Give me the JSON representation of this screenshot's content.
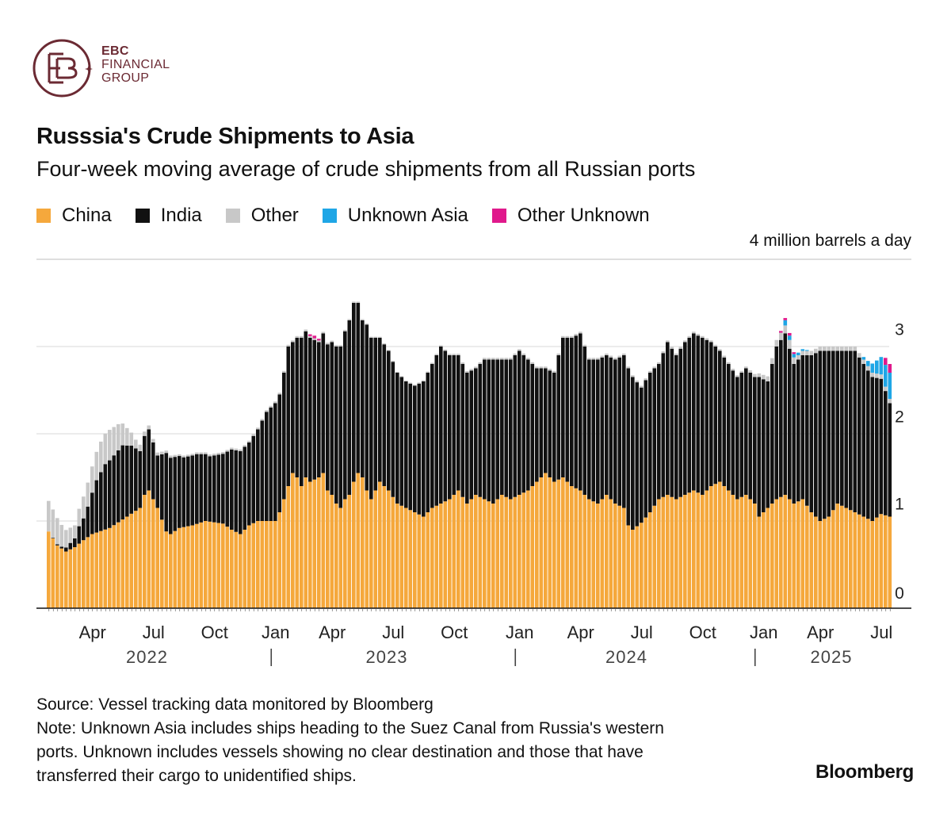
{
  "logo": {
    "line1": "EBC",
    "line2": "FINANCIAL",
    "line3": "GROUP"
  },
  "title": "Russsia's Crude Shipments to Asia",
  "subtitle": "Four-week moving average of crude shipments from all Russian ports",
  "legend": [
    {
      "label": "China",
      "color": "#f5a83c"
    },
    {
      "label": "India",
      "color": "#111111"
    },
    {
      "label": "Other",
      "color": "#c8c8c8"
    },
    {
      "label": "Unknown Asia",
      "color": "#1fa6e6"
    },
    {
      "label": "Other Unknown",
      "color": "#e0198c"
    }
  ],
  "unit_label": "4 million barrels a day",
  "footer": {
    "source": "Source: Vessel tracking data monitored by Bloomberg",
    "note_line1": "Note: Unknown Asia includes ships heading to the Suez Canal from Russia's western",
    "note_line2": "ports. Unknown includes vessels showing no clear destination and those that have",
    "note_line3": "transferred their cargo to unidentified ships."
  },
  "brand": "Bloomberg",
  "chart_data": {
    "type": "bar",
    "stacked": true,
    "ylabel": "4 million barrels a day",
    "ylim": [
      0,
      4
    ],
    "y_ticks": [
      0,
      1,
      2,
      3
    ],
    "grid": true,
    "month_ticks": [
      {
        "label": "Apr",
        "week": 10
      },
      {
        "label": "Jul",
        "week": 24
      },
      {
        "label": "Oct",
        "week": 38
      },
      {
        "label": "Jan",
        "week": 52
      },
      {
        "label": "Apr",
        "week": 65
      },
      {
        "label": "Jul",
        "week": 79
      },
      {
        "label": "Oct",
        "week": 93
      },
      {
        "label": "Jan",
        "week": 108
      },
      {
        "label": "Apr",
        "week": 122
      },
      {
        "label": "Jul",
        "week": 136
      },
      {
        "label": "Oct",
        "week": 150
      },
      {
        "label": "Jan",
        "week": 164
      },
      {
        "label": "Apr",
        "week": 177
      },
      {
        "label": "Jul",
        "week": 191
      }
    ],
    "years": [
      {
        "label": "2022",
        "week": 23
      },
      {
        "label": "2023",
        "week": 78
      },
      {
        "label": "2024",
        "week": 133
      },
      {
        "label": "2025",
        "week": 180
      }
    ],
    "year_separators": [
      51.5,
      107.5,
      162.5
    ],
    "series": [
      {
        "name": "China",
        "color": "#f5a83c",
        "key": [
          [
            0,
            0.88
          ],
          [
            2,
            0.72
          ],
          [
            4,
            0.65
          ],
          [
            6,
            0.7
          ],
          [
            8,
            0.78
          ],
          [
            10,
            0.85
          ],
          [
            14,
            0.92
          ],
          [
            18,
            1.05
          ],
          [
            21,
            1.15
          ],
          [
            22,
            1.3
          ],
          [
            23,
            1.35
          ],
          [
            25,
            1.15
          ],
          [
            27,
            0.88
          ],
          [
            28,
            0.85
          ],
          [
            30,
            0.92
          ],
          [
            33,
            0.95
          ],
          [
            36,
            1.0
          ],
          [
            40,
            0.97
          ],
          [
            42,
            0.9
          ],
          [
            44,
            0.85
          ],
          [
            46,
            0.95
          ],
          [
            48,
            1.0
          ],
          [
            52,
            1.0
          ],
          [
            53,
            1.1
          ],
          [
            54,
            1.25
          ],
          [
            55,
            1.4
          ],
          [
            56,
            1.55
          ],
          [
            57,
            1.5
          ],
          [
            58,
            1.4
          ],
          [
            59,
            1.5
          ],
          [
            60,
            1.45
          ],
          [
            62,
            1.5
          ],
          [
            63,
            1.55
          ],
          [
            64,
            1.35
          ],
          [
            65,
            1.3
          ],
          [
            66,
            1.2
          ],
          [
            67,
            1.15
          ],
          [
            68,
            1.25
          ],
          [
            69,
            1.3
          ],
          [
            70,
            1.45
          ],
          [
            71,
            1.55
          ],
          [
            72,
            1.5
          ],
          [
            73,
            1.35
          ],
          [
            74,
            1.25
          ],
          [
            75,
            1.35
          ],
          [
            76,
            1.45
          ],
          [
            77,
            1.4
          ],
          [
            78,
            1.35
          ],
          [
            80,
            1.2
          ],
          [
            82,
            1.15
          ],
          [
            84,
            1.1
          ],
          [
            86,
            1.05
          ],
          [
            88,
            1.15
          ],
          [
            90,
            1.2
          ],
          [
            92,
            1.25
          ],
          [
            94,
            1.35
          ],
          [
            96,
            1.2
          ],
          [
            98,
            1.3
          ],
          [
            100,
            1.25
          ],
          [
            102,
            1.2
          ],
          [
            104,
            1.3
          ],
          [
            106,
            1.25
          ],
          [
            108,
            1.3
          ],
          [
            110,
            1.35
          ],
          [
            112,
            1.45
          ],
          [
            114,
            1.55
          ],
          [
            116,
            1.45
          ],
          [
            118,
            1.5
          ],
          [
            120,
            1.4
          ],
          [
            122,
            1.35
          ],
          [
            124,
            1.25
          ],
          [
            126,
            1.2
          ],
          [
            128,
            1.3
          ],
          [
            130,
            1.2
          ],
          [
            132,
            1.15
          ],
          [
            133,
            0.95
          ],
          [
            134,
            0.9
          ],
          [
            136,
            0.98
          ],
          [
            138,
            1.1
          ],
          [
            140,
            1.25
          ],
          [
            142,
            1.3
          ],
          [
            144,
            1.25
          ],
          [
            146,
            1.3
          ],
          [
            148,
            1.35
          ],
          [
            150,
            1.3
          ],
          [
            152,
            1.4
          ],
          [
            154,
            1.45
          ],
          [
            156,
            1.35
          ],
          [
            158,
            1.25
          ],
          [
            160,
            1.3
          ],
          [
            162,
            1.2
          ],
          [
            163,
            1.05
          ],
          [
            165,
            1.15
          ],
          [
            167,
            1.25
          ],
          [
            169,
            1.3
          ],
          [
            171,
            1.2
          ],
          [
            173,
            1.25
          ],
          [
            175,
            1.1
          ],
          [
            177,
            1.0
          ],
          [
            179,
            1.05
          ],
          [
            181,
            1.2
          ],
          [
            183,
            1.15
          ],
          [
            185,
            1.1
          ],
          [
            187,
            1.05
          ],
          [
            189,
            1.0
          ],
          [
            191,
            1.08
          ],
          [
            193,
            1.05
          ]
        ]
      },
      {
        "name": "India",
        "color": "#111111",
        "key": [
          [
            0,
            0.0
          ],
          [
            3,
            0.02
          ],
          [
            6,
            0.1
          ],
          [
            7,
            0.2
          ],
          [
            8,
            0.25
          ],
          [
            9,
            0.35
          ],
          [
            11,
            0.6
          ],
          [
            13,
            0.75
          ],
          [
            15,
            0.8
          ],
          [
            17,
            0.85
          ],
          [
            19,
            0.78
          ],
          [
            21,
            0.65
          ],
          [
            23,
            0.7
          ],
          [
            25,
            0.6
          ],
          [
            27,
            0.9
          ],
          [
            29,
            0.85
          ],
          [
            31,
            0.8
          ],
          [
            34,
            0.8
          ],
          [
            37,
            0.75
          ],
          [
            40,
            0.8
          ],
          [
            42,
            0.92
          ],
          [
            44,
            0.95
          ],
          [
            46,
            0.95
          ],
          [
            48,
            1.05
          ],
          [
            50,
            1.25
          ],
          [
            52,
            1.35
          ],
          [
            53,
            1.35
          ],
          [
            54,
            1.45
          ],
          [
            55,
            1.6
          ],
          [
            56,
            1.5
          ],
          [
            58,
            1.7
          ],
          [
            60,
            1.65
          ],
          [
            62,
            1.55
          ],
          [
            63,
            1.6
          ],
          [
            65,
            1.75
          ],
          [
            67,
            1.85
          ],
          [
            69,
            2.0
          ],
          [
            70,
            2.05
          ],
          [
            71,
            1.95
          ],
          [
            72,
            1.8
          ],
          [
            73,
            1.9
          ],
          [
            74,
            1.85
          ],
          [
            75,
            1.75
          ],
          [
            76,
            1.65
          ],
          [
            78,
            1.6
          ],
          [
            80,
            1.5
          ],
          [
            82,
            1.45
          ],
          [
            84,
            1.45
          ],
          [
            86,
            1.55
          ],
          [
            88,
            1.65
          ],
          [
            90,
            1.8
          ],
          [
            92,
            1.65
          ],
          [
            94,
            1.55
          ],
          [
            96,
            1.5
          ],
          [
            98,
            1.45
          ],
          [
            100,
            1.6
          ],
          [
            102,
            1.65
          ],
          [
            104,
            1.55
          ],
          [
            106,
            1.6
          ],
          [
            108,
            1.65
          ],
          [
            110,
            1.5
          ],
          [
            112,
            1.3
          ],
          [
            114,
            1.2
          ],
          [
            116,
            1.25
          ],
          [
            118,
            1.6
          ],
          [
            120,
            1.7
          ],
          [
            122,
            1.8
          ],
          [
            124,
            1.6
          ],
          [
            126,
            1.65
          ],
          [
            128,
            1.6
          ],
          [
            130,
            1.65
          ],
          [
            132,
            1.75
          ],
          [
            133,
            1.8
          ],
          [
            134,
            1.75
          ],
          [
            136,
            1.55
          ],
          [
            138,
            1.6
          ],
          [
            140,
            1.55
          ],
          [
            142,
            1.75
          ],
          [
            144,
            1.65
          ],
          [
            146,
            1.75
          ],
          [
            148,
            1.8
          ],
          [
            150,
            1.8
          ],
          [
            152,
            1.65
          ],
          [
            154,
            1.5
          ],
          [
            156,
            1.45
          ],
          [
            158,
            1.4
          ],
          [
            160,
            1.45
          ],
          [
            162,
            1.45
          ],
          [
            163,
            1.6
          ],
          [
            165,
            1.45
          ],
          [
            167,
            1.75
          ],
          [
            169,
            1.85
          ],
          [
            171,
            1.6
          ],
          [
            173,
            1.65
          ],
          [
            175,
            1.8
          ],
          [
            177,
            1.95
          ],
          [
            179,
            1.9
          ],
          [
            181,
            1.75
          ],
          [
            183,
            1.8
          ],
          [
            185,
            1.85
          ],
          [
            187,
            1.75
          ],
          [
            189,
            1.65
          ],
          [
            191,
            1.55
          ],
          [
            193,
            1.3
          ]
        ]
      },
      {
        "name": "Other",
        "color": "#c8c8c8",
        "key": [
          [
            0,
            0.35
          ],
          [
            2,
            0.3
          ],
          [
            4,
            0.2
          ],
          [
            6,
            0.15
          ],
          [
            8,
            0.25
          ],
          [
            10,
            0.3
          ],
          [
            12,
            0.35
          ],
          [
            14,
            0.35
          ],
          [
            16,
            0.3
          ],
          [
            18,
            0.2
          ],
          [
            20,
            0.1
          ],
          [
            22,
            0.05
          ],
          [
            26,
            0.03
          ],
          [
            30,
            0.02
          ],
          [
            40,
            0.02
          ],
          [
            50,
            0.02
          ],
          [
            60,
            0.02
          ],
          [
            80,
            0.01
          ],
          [
            100,
            0.02
          ],
          [
            120,
            0.02
          ],
          [
            140,
            0.02
          ],
          [
            160,
            0.02
          ],
          [
            164,
            0.05
          ],
          [
            170,
            0.1
          ],
          [
            172,
            0.05
          ],
          [
            180,
            0.05
          ],
          [
            186,
            0.05
          ],
          [
            193,
            0.05
          ]
        ]
      },
      {
        "name": "Unknown Asia",
        "color": "#1fa6e6",
        "key": [
          [
            0,
            0
          ],
          [
            160,
            0
          ],
          [
            168,
            0
          ],
          [
            169,
            0.06
          ],
          [
            172,
            0.03
          ],
          [
            175,
            0
          ],
          [
            186,
            0
          ],
          [
            188,
            0.06
          ],
          [
            190,
            0.15
          ],
          [
            192,
            0.25
          ],
          [
            193,
            0.3
          ]
        ]
      },
      {
        "name": "Other Unknown",
        "color": "#e0198c",
        "key": [
          [
            0,
            0
          ],
          [
            59,
            0
          ],
          [
            60,
            0.02
          ],
          [
            61,
            0.03
          ],
          [
            62,
            0.02
          ],
          [
            63,
            0
          ],
          [
            167,
            0
          ],
          [
            168,
            0.02
          ],
          [
            170,
            0.03
          ],
          [
            171,
            0.02
          ],
          [
            172,
            0
          ],
          [
            191,
            0
          ],
          [
            192,
            0.08
          ],
          [
            193,
            0.1
          ]
        ]
      }
    ]
  }
}
